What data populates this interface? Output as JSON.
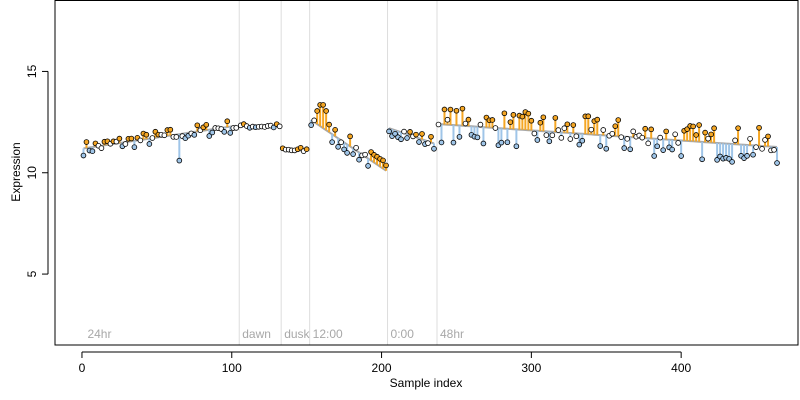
{
  "chart_data": {
    "type": "scatter",
    "title": "",
    "xlabel": "Sample index",
    "ylabel": "Expression",
    "xlim": [
      -18,
      478
    ],
    "ylim": [
      1.5,
      18.5
    ],
    "x_ticks": [
      0,
      100,
      200,
      300,
      400
    ],
    "y_ticks": [
      5,
      10,
      15
    ],
    "grid": false,
    "legend": "none",
    "colors": {
      "frame": "#000000",
      "separator": "#dddddd",
      "trend_line": "#a8a8a8",
      "segment_label": "#a8a8a8",
      "above_trend": "#f5a623",
      "below_trend": "#9fc5e8",
      "point_stroke": "#000000"
    },
    "separators": [
      {
        "x": 105,
        "label": "dawn"
      },
      {
        "x": 133,
        "label": "dusk"
      },
      {
        "x": 152,
        "label": "12:00"
      },
      {
        "x": 204,
        "label": "0:00"
      },
      {
        "x": 237,
        "label": "48hr"
      }
    ],
    "start_label": {
      "x": 3,
      "label": "24hr"
    },
    "segments": [
      {
        "x_start": 1,
        "x_end": 104,
        "base": 11.2,
        "slope": 0.011,
        "noise": 0.35,
        "dip": {
          "x": 65,
          "y": 10.6
        }
      },
      {
        "x_start": 106,
        "x_end": 132,
        "base": 12.3,
        "slope": 0.0,
        "noise": 0.12
      },
      {
        "x_start": 134,
        "x_end": 151,
        "base": 11.1,
        "slope": 0.0,
        "noise": 0.15
      },
      {
        "x_start": 153,
        "x_end": 203,
        "base": 12.6,
        "slope": -0.05,
        "noise": 0.5,
        "peak": {
          "x": 160,
          "y": 13.5
        }
      },
      {
        "x_start": 205,
        "x_end": 236,
        "base": 12.2,
        "slope": -0.025,
        "noise": 0.35
      },
      {
        "x_start": 238,
        "x_end": 465,
        "base": 12.4,
        "slope": -0.005,
        "noise": 0.9
      }
    ]
  }
}
